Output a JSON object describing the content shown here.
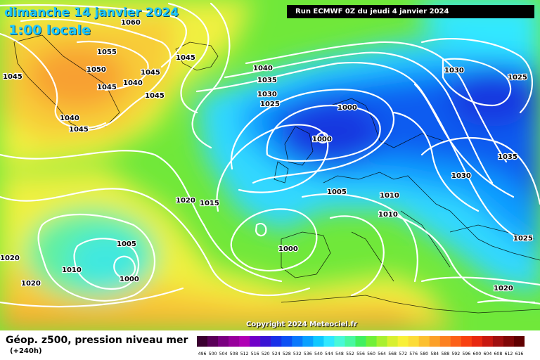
{
  "header": {
    "date": "dimanche 14 janvier 2024",
    "time": "1:00 locale",
    "run": "Run ECMWF 0Z du jeudi 4 janvier 2024"
  },
  "footer": {
    "copyright": "Copyright 2024 Meteociel.fr",
    "title": "Géop. z500, pression niveau mer",
    "lead": "(+240h)"
  },
  "isobar_labels": [
    "1060",
    "1055",
    "1050",
    "1045",
    "1045",
    "1040",
    "1045",
    "1045",
    "1040",
    "1045",
    "1045",
    "1040",
    "1035",
    "1030",
    "1025",
    "1000",
    "1000",
    "1030",
    "1025",
    "1035",
    "1030",
    "1005",
    "1010",
    "1010",
    "1020",
    "1015",
    "1000",
    "1025",
    "1020",
    "1005",
    "1010",
    "1000",
    "1020",
    "1020"
  ],
  "scale": {
    "ticks": [
      "496",
      "500",
      "504",
      "508",
      "512",
      "516",
      "520",
      "524",
      "528",
      "532",
      "536",
      "540",
      "544",
      "548",
      "552",
      "556",
      "560",
      "564",
      "568",
      "572",
      "576",
      "580",
      "584",
      "588",
      "592",
      "596",
      "600",
      "604",
      "608",
      "612",
      "616"
    ],
    "colors": [
      "#3a0030",
      "#5a0058",
      "#7a0080",
      "#98009c",
      "#b000b4",
      "#7000c8",
      "#3a14d4",
      "#1830e8",
      "#0c50f4",
      "#0a78fc",
      "#0aa0ff",
      "#10c8ff",
      "#30e8ff",
      "#48f8d8",
      "#48f8a0",
      "#40f060",
      "#70f038",
      "#a8f030",
      "#d8f030",
      "#f8f038",
      "#fcdc38",
      "#fcc030",
      "#fca028",
      "#fc8020",
      "#fc6018",
      "#f84010",
      "#e82810",
      "#c81810",
      "#a01010",
      "#800808",
      "#600000"
    ]
  }
}
